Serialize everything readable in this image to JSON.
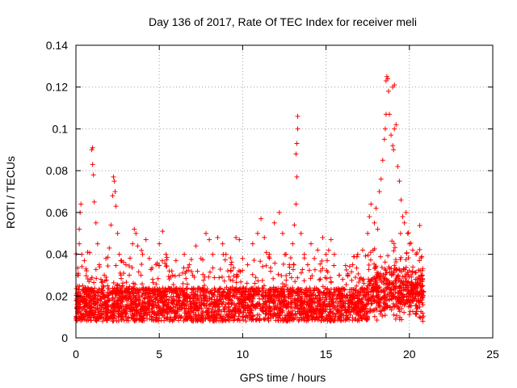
{
  "chart_data": {
    "type": "scatter",
    "title": "Day 136 of 2017, Rate Of TEC Index for receiver meli",
    "xlabel": "GPS time / hours",
    "ylabel": "ROTI / TECUs",
    "xlim": [
      0,
      25
    ],
    "ylim": [
      0,
      0.14
    ],
    "xticks": [
      0,
      5,
      10,
      15,
      20,
      25
    ],
    "yticks": [
      0,
      0.02,
      0.04,
      0.06,
      0.08,
      0.1,
      0.12,
      0.14
    ],
    "grid": true,
    "marker": "+",
    "color": "#ff0000",
    "series": [
      {
        "points": [
          [
            0.05,
            0.014
          ],
          [
            0.1,
            0.02
          ],
          [
            0.15,
            0.03
          ],
          [
            0.2,
            0.045
          ],
          [
            0.25,
            0.06
          ],
          [
            0.3,
            0.064
          ],
          [
            0.2,
            0.052
          ],
          [
            0.35,
            0.04
          ],
          [
            0.4,
            0.025
          ],
          [
            0.5,
            0.018
          ],
          [
            0.6,
            0.033
          ],
          [
            0.7,
            0.041
          ],
          [
            0.8,
            0.02
          ],
          [
            0.9,
            0.028
          ],
          [
            0.95,
            0.09
          ],
          [
            1.0,
            0.091
          ],
          [
            1.0,
            0.083
          ],
          [
            1.05,
            0.078
          ],
          [
            1.1,
            0.065
          ],
          [
            1.2,
            0.055
          ],
          [
            1.3,
            0.045
          ],
          [
            1.4,
            0.035
          ],
          [
            1.5,
            0.028
          ],
          [
            1.6,
            0.02
          ],
          [
            1.7,
            0.03
          ],
          [
            1.8,
            0.038
          ],
          [
            1.9,
            0.025
          ],
          [
            2.0,
            0.043
          ],
          [
            2.1,
            0.054
          ],
          [
            2.2,
            0.068
          ],
          [
            2.25,
            0.077
          ],
          [
            2.3,
            0.075
          ],
          [
            2.35,
            0.07
          ],
          [
            2.4,
            0.063
          ],
          [
            2.5,
            0.05
          ],
          [
            2.6,
            0.04
          ],
          [
            2.7,
            0.03
          ],
          [
            2.8,
            0.025
          ],
          [
            3.0,
            0.035
          ],
          [
            3.2,
            0.03
          ],
          [
            3.4,
            0.045
          ],
          [
            3.5,
            0.052
          ],
          [
            3.6,
            0.05
          ],
          [
            3.7,
            0.044
          ],
          [
            3.9,
            0.03
          ],
          [
            4.0,
            0.04
          ],
          [
            4.2,
            0.047
          ],
          [
            4.4,
            0.038
          ],
          [
            4.6,
            0.028
          ],
          [
            4.8,
            0.035
          ],
          [
            5.0,
            0.045
          ],
          [
            5.2,
            0.051
          ],
          [
            5.4,
            0.04
          ],
          [
            5.6,
            0.032
          ],
          [
            5.8,
            0.03
          ],
          [
            6.0,
            0.037
          ],
          [
            6.2,
            0.03
          ],
          [
            6.5,
            0.04
          ],
          [
            6.8,
            0.035
          ],
          [
            7.0,
            0.03
          ],
          [
            7.2,
            0.044
          ],
          [
            7.5,
            0.038
          ],
          [
            7.8,
            0.05
          ],
          [
            8.0,
            0.047
          ],
          [
            8.2,
            0.04
          ],
          [
            8.5,
            0.048
          ],
          [
            8.8,
            0.045
          ],
          [
            9.0,
            0.04
          ],
          [
            9.3,
            0.035
          ],
          [
            9.6,
            0.048
          ],
          [
            9.8,
            0.047
          ],
          [
            10.0,
            0.038
          ],
          [
            10.3,
            0.035
          ],
          [
            10.6,
            0.045
          ],
          [
            10.9,
            0.05
          ],
          [
            11.1,
            0.057
          ],
          [
            11.3,
            0.048
          ],
          [
            11.6,
            0.04
          ],
          [
            11.9,
            0.055
          ],
          [
            12.2,
            0.06
          ],
          [
            12.4,
            0.05
          ],
          [
            12.6,
            0.04
          ],
          [
            12.8,
            0.035
          ],
          [
            13.0,
            0.045
          ],
          [
            13.1,
            0.054
          ],
          [
            13.2,
            0.064
          ],
          [
            13.25,
            0.077
          ],
          [
            13.2,
            0.088
          ],
          [
            13.25,
            0.093
          ],
          [
            13.3,
            0.1
          ],
          [
            13.3,
            0.106
          ],
          [
            13.5,
            0.05
          ],
          [
            13.7,
            0.04
          ],
          [
            13.9,
            0.035
          ],
          [
            14.1,
            0.045
          ],
          [
            14.3,
            0.038
          ],
          [
            14.5,
            0.042
          ],
          [
            14.8,
            0.048
          ],
          [
            15.0,
            0.04
          ],
          [
            15.3,
            0.047
          ],
          [
            15.5,
            0.04
          ],
          [
            15.8,
            0.03
          ],
          [
            16.0,
            0.028
          ],
          [
            16.3,
            0.03
          ],
          [
            16.6,
            0.035
          ],
          [
            16.9,
            0.04
          ],
          [
            17.2,
            0.042
          ],
          [
            17.5,
            0.05
          ],
          [
            17.6,
            0.058
          ],
          [
            17.7,
            0.064
          ],
          [
            17.9,
            0.055
          ],
          [
            18.0,
            0.062
          ],
          [
            18.1,
            0.052
          ],
          [
            18.2,
            0.07
          ],
          [
            18.3,
            0.076
          ],
          [
            18.4,
            0.085
          ],
          [
            18.5,
            0.095
          ],
          [
            18.55,
            0.1
          ],
          [
            18.6,
            0.107
          ],
          [
            18.6,
            0.123
          ],
          [
            18.65,
            0.125
          ],
          [
            18.7,
            0.124
          ],
          [
            18.75,
            0.118
          ],
          [
            18.8,
            0.107
          ],
          [
            18.9,
            0.097
          ],
          [
            19.0,
            0.092
          ],
          [
            19.05,
            0.09
          ],
          [
            19.1,
            0.1
          ],
          [
            19.0,
            0.12
          ],
          [
            19.1,
            0.121
          ],
          [
            19.2,
            0.102
          ],
          [
            19.3,
            0.082
          ],
          [
            19.4,
            0.075
          ],
          [
            19.5,
            0.066
          ],
          [
            19.6,
            0.058
          ],
          [
            19.7,
            0.055
          ],
          [
            19.8,
            0.06
          ],
          [
            19.9,
            0.05
          ],
          [
            20.0,
            0.045
          ],
          [
            20.2,
            0.042
          ],
          [
            20.4,
            0.04
          ],
          [
            20.6,
            0.037
          ],
          [
            20.7,
            0.03
          ],
          [
            20.8,
            0.025
          ],
          [
            20.8,
            0.008
          ],
          [
            20.6,
            0.01
          ]
        ]
      }
    ]
  }
}
